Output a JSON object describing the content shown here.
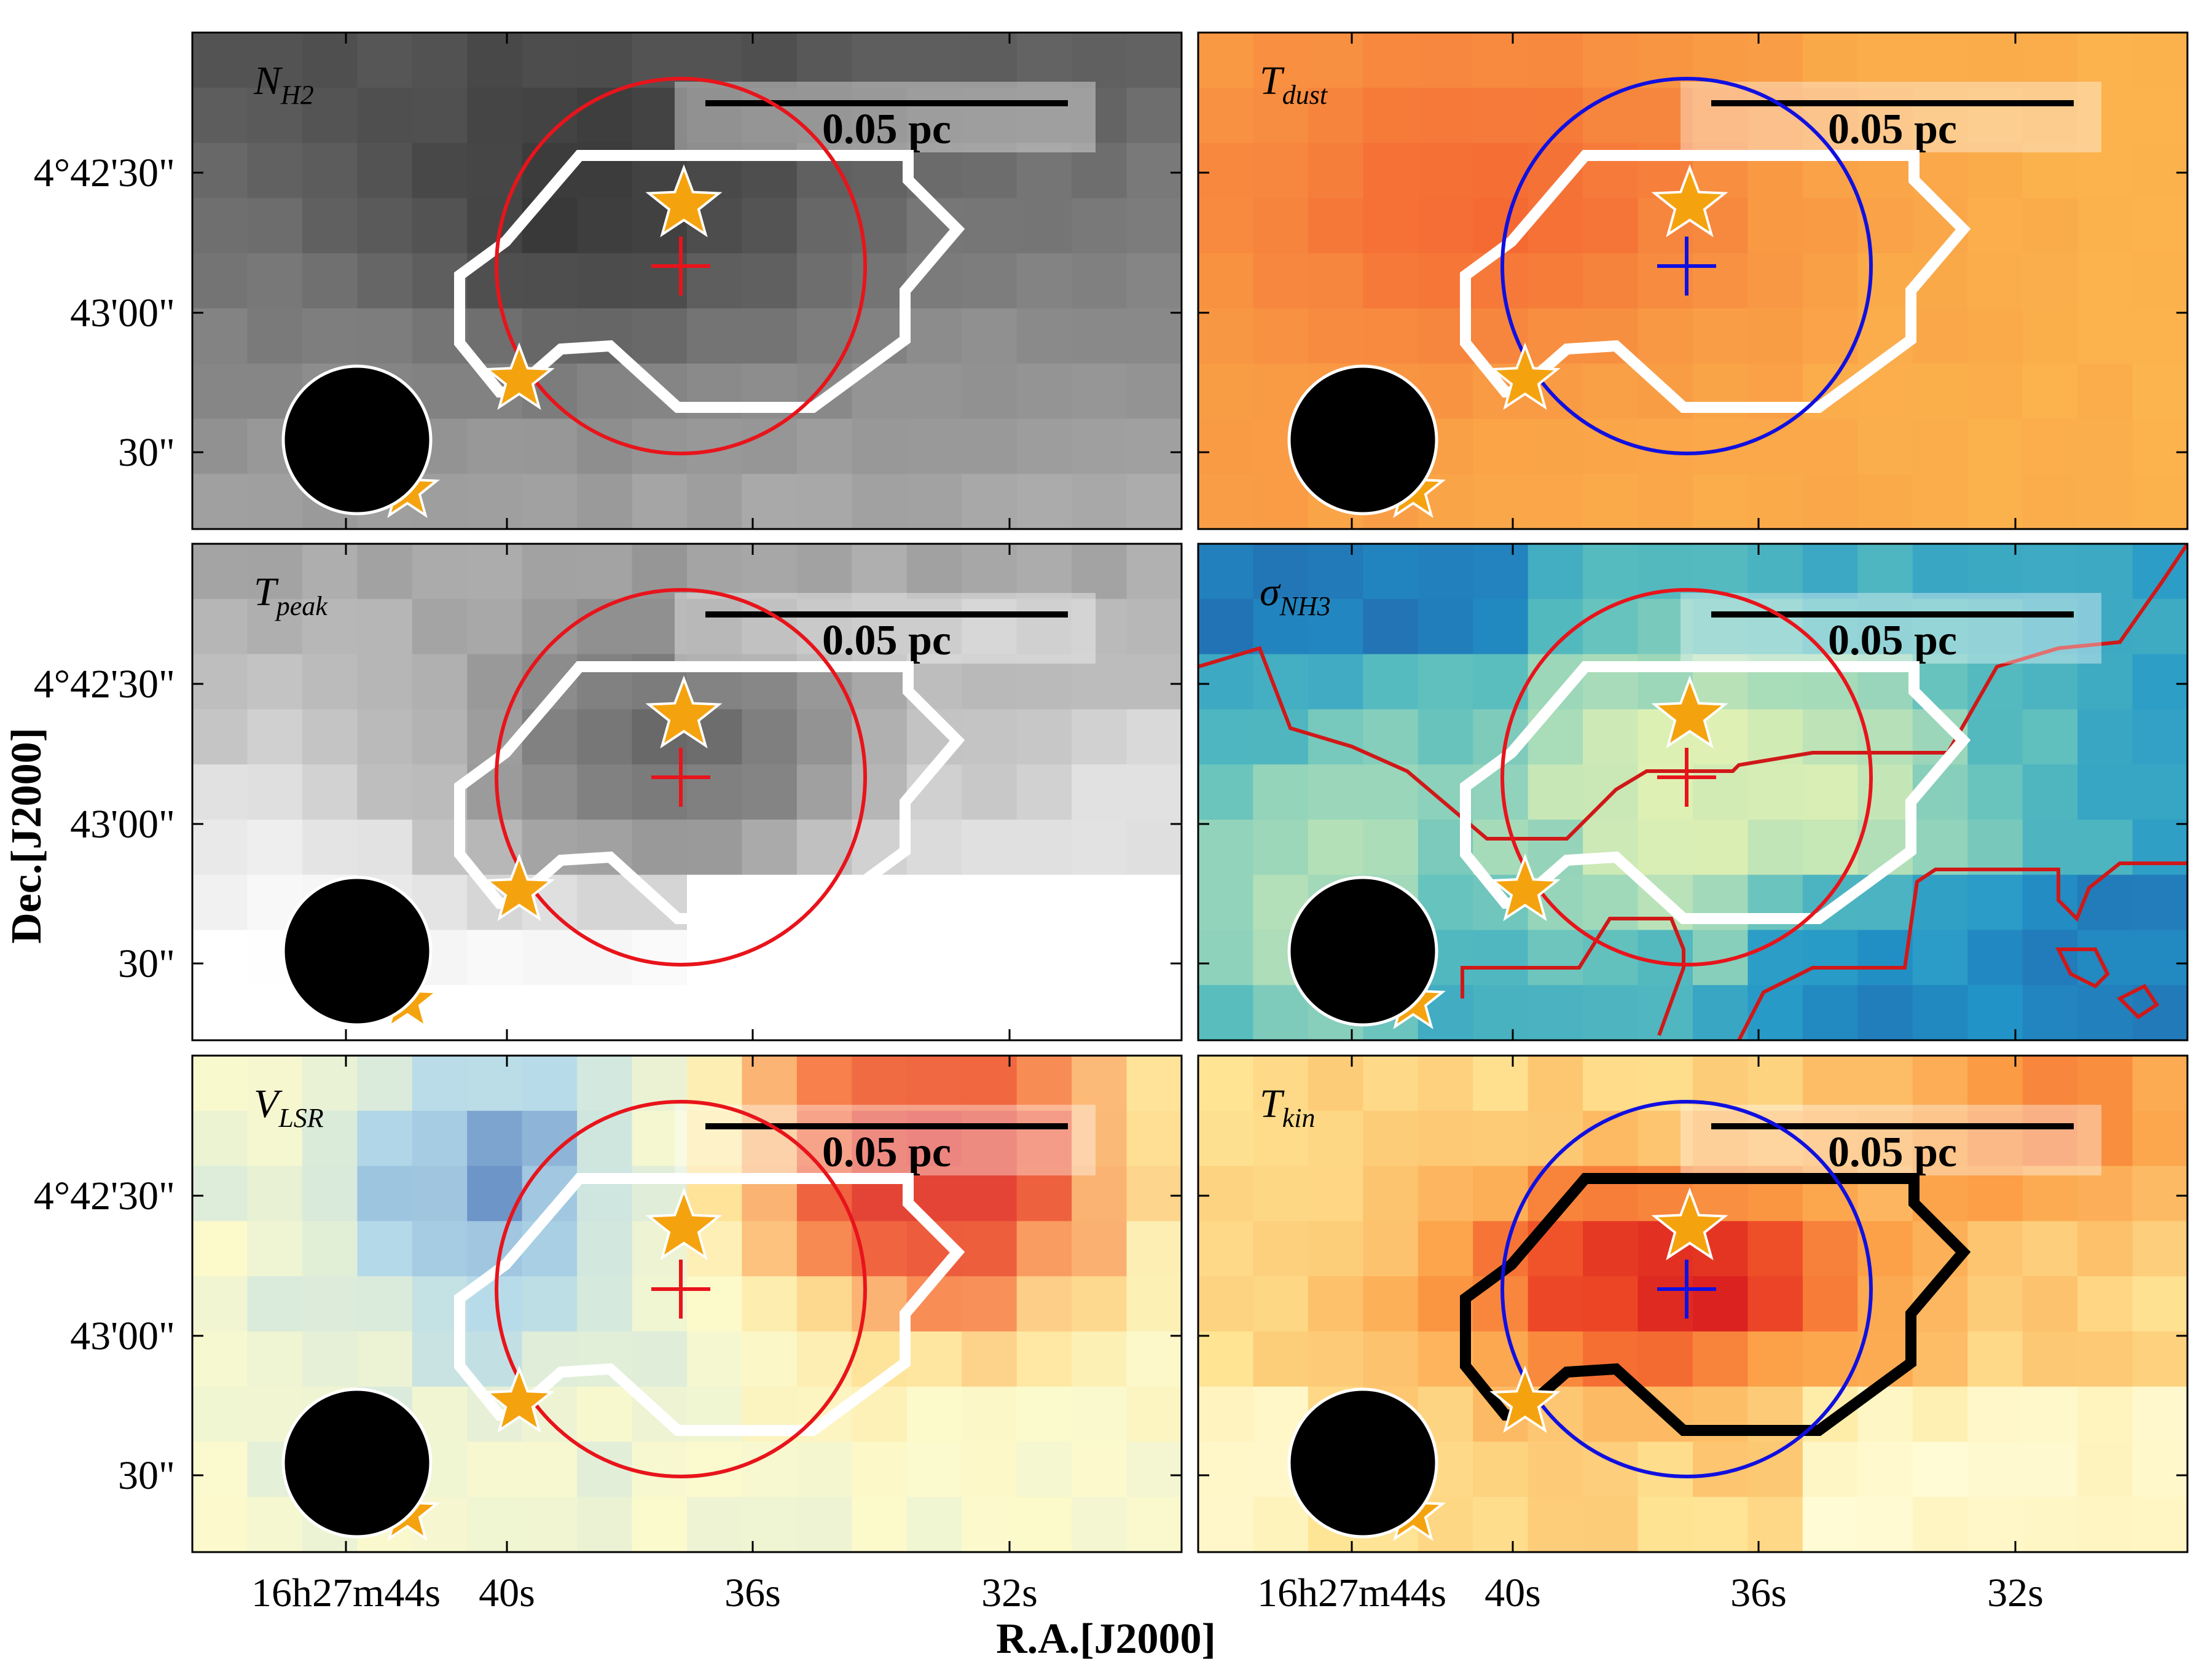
{
  "figure": {
    "xlabel": "R.A.[J2000]",
    "ylabel": "Dec.[J2000]",
    "x_ticks": [
      "16h27m44s",
      "40s",
      "36s",
      "32s"
    ],
    "y_ticks": [
      "4°42'30\"",
      "43'00\"",
      "30\""
    ],
    "scale_bar_label": "0.05 pc"
  },
  "chart_data": [
    {
      "type": "heatmap",
      "panel": "N_H2",
      "label_main": "N",
      "label_sub": "H2",
      "colormap": "grayscale",
      "ring_color": "#e8141b",
      "cross_color": "#e8141b",
      "contour_color": "#ffffff"
    },
    {
      "type": "heatmap",
      "panel": "T_dust",
      "label_main": "T",
      "label_sub": "dust",
      "colormap": "orange",
      "ring_color": "#1010e0",
      "cross_color": "#1010e0",
      "contour_color": "#ffffff"
    },
    {
      "type": "heatmap",
      "panel": "T_peak",
      "label_main": "T",
      "label_sub": "peak",
      "colormap": "grayscale",
      "ring_color": "#e8141b",
      "cross_color": "#e8141b",
      "contour_color": "#ffffff"
    },
    {
      "type": "heatmap",
      "panel": "sigma_NH3",
      "label_main": "σ",
      "label_sub": "NH3",
      "colormap": "yellow-green-blue",
      "ring_color": "#e8141b",
      "cross_color": "#e8141b",
      "contour_color": "#ffffff",
      "extra_contour_color": "#d01818"
    },
    {
      "type": "heatmap",
      "panel": "V_LSR",
      "label_main": "V",
      "label_sub": "LSR",
      "colormap": "red-yellow-blue",
      "ring_color": "#e8141b",
      "cross_color": "#e8141b",
      "contour_color": "#ffffff"
    },
    {
      "type": "heatmap",
      "panel": "T_kin",
      "label_main": "T",
      "label_sub": "kin",
      "colormap": "yellow-orange-red",
      "ring_color": "#1010e0",
      "cross_color": "#1010e0",
      "contour_color": "#000000"
    }
  ]
}
